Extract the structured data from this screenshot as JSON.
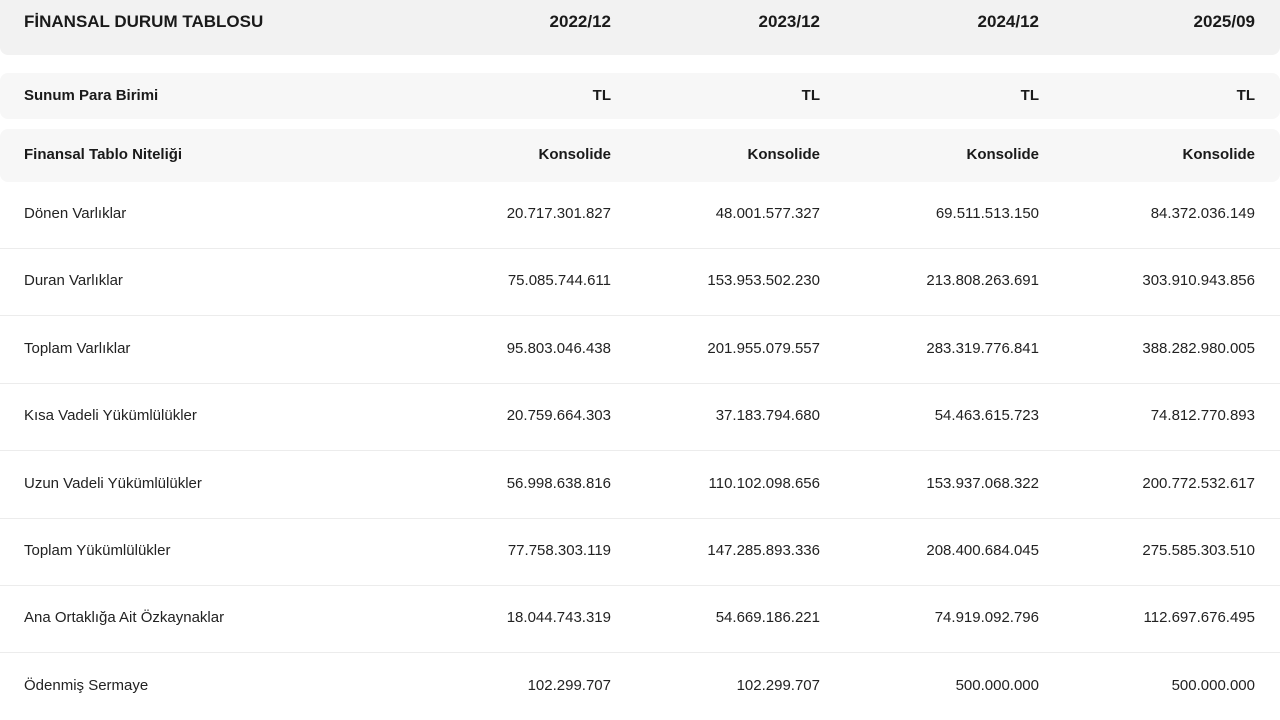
{
  "header": {
    "title": "FİNANSAL DURUM TABLOSU",
    "periods": [
      "2022/12",
      "2023/12",
      "2024/12",
      "2025/09"
    ]
  },
  "meta_rows": [
    {
      "label": "Sunum Para Birimi",
      "values": [
        "TL",
        "TL",
        "TL",
        "TL"
      ]
    },
    {
      "label": "Finansal Tablo Niteliği",
      "values": [
        "Konsolide",
        "Konsolide",
        "Konsolide",
        "Konsolide"
      ]
    }
  ],
  "rows": [
    {
      "label": "Dönen Varlıklar",
      "values": [
        "20.717.301.827",
        "48.001.577.327",
        "69.511.513.150",
        "84.372.036.149"
      ]
    },
    {
      "label": "Duran Varlıklar",
      "values": [
        "75.085.744.611",
        "153.953.502.230",
        "213.808.263.691",
        "303.910.943.856"
      ]
    },
    {
      "label": "Toplam Varlıklar",
      "values": [
        "95.803.046.438",
        "201.955.079.557",
        "283.319.776.841",
        "388.282.980.005"
      ]
    },
    {
      "label": "Kısa Vadeli Yükümlülükler",
      "values": [
        "20.759.664.303",
        "37.183.794.680",
        "54.463.615.723",
        "74.812.770.893"
      ]
    },
    {
      "label": "Uzun Vadeli Yükümlülükler",
      "values": [
        "56.998.638.816",
        "110.102.098.656",
        "153.937.068.322",
        "200.772.532.617"
      ]
    },
    {
      "label": "Toplam Yükümlülükler",
      "values": [
        "77.758.303.119",
        "147.285.893.336",
        "208.400.684.045",
        "275.585.303.510"
      ]
    },
    {
      "label": "Ana Ortaklığa Ait Özkaynaklar",
      "values": [
        "18.044.743.319",
        "54.669.186.221",
        "74.919.092.796",
        "112.697.676.495"
      ]
    },
    {
      "label": "Ödenmiş Sermaye",
      "values": [
        "102.299.707",
        "102.299.707",
        "500.000.000",
        "500.000.000"
      ]
    }
  ]
}
